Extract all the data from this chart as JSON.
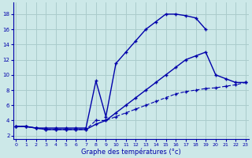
{
  "title": "Graphe des températures (°c)",
  "bg_color": "#cce8e8",
  "grid_color": "#aacccc",
  "line_color": "#0000aa",
  "x_ticks": [
    0,
    1,
    2,
    3,
    4,
    5,
    6,
    7,
    8,
    9,
    10,
    11,
    12,
    13,
    14,
    15,
    16,
    17,
    18,
    19,
    20,
    21,
    22,
    23
  ],
  "y_ticks": [
    2,
    4,
    6,
    8,
    10,
    12,
    14,
    16,
    18
  ],
  "xlim": [
    -0.3,
    23.3
  ],
  "ylim": [
    1.5,
    19.5
  ],
  "curve1_x": [
    0,
    1,
    2,
    3,
    4,
    5,
    6,
    7,
    8,
    9,
    10,
    11,
    12,
    13,
    14,
    15,
    16,
    17,
    18,
    19
  ],
  "curve1_y": [
    3.2,
    3.2,
    3.0,
    3.0,
    3.0,
    3.0,
    3.0,
    3.0,
    9.2,
    4.5,
    11.5,
    13.0,
    14.5,
    16.0,
    17.0,
    18.0,
    18.0,
    17.8,
    17.5,
    16.0
  ],
  "curve2_x": [
    0,
    1,
    2,
    3,
    4,
    5,
    6,
    7,
    8,
    9,
    10,
    11,
    12,
    13,
    14,
    15,
    16,
    17,
    18,
    19,
    20,
    21,
    22,
    23
  ],
  "curve2_y": [
    3.2,
    3.2,
    3.0,
    2.8,
    2.8,
    2.8,
    2.8,
    2.8,
    3.5,
    4.0,
    5.0,
    6.0,
    7.0,
    8.0,
    9.0,
    10.0,
    11.0,
    12.0,
    12.5,
    13.0,
    10.0,
    9.5,
    9.0,
    9.0
  ],
  "curve3_x": [
    0,
    1,
    2,
    3,
    4,
    5,
    6,
    7,
    8,
    9,
    10,
    11,
    12,
    13,
    14,
    15,
    16,
    17,
    18,
    19,
    20,
    21,
    22,
    23
  ],
  "curve3_y": [
    3.2,
    3.2,
    3.0,
    2.8,
    2.8,
    2.8,
    2.8,
    2.8,
    4.0,
    4.0,
    4.5,
    5.0,
    5.5,
    6.0,
    6.5,
    7.0,
    7.5,
    7.8,
    8.0,
    8.2,
    8.3,
    8.5,
    8.7,
    9.0
  ]
}
